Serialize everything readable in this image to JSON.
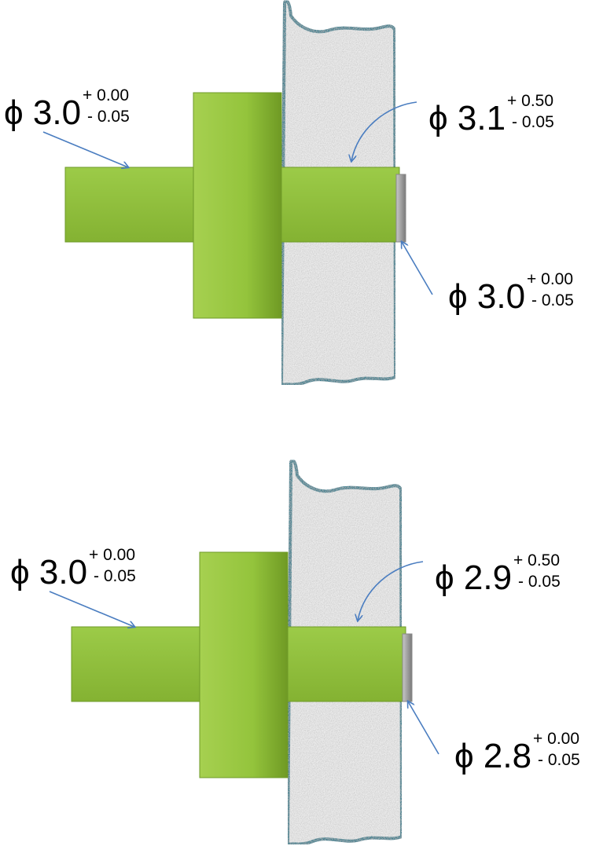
{
  "panels": [
    {
      "labels": [
        {
          "main": "ϕ 3.0",
          "upper": "+ 0.00",
          "lower": "- 0.05"
        },
        {
          "main": "ϕ 3.1",
          "upper": "+ 0.50",
          "lower": "- 0.05"
        },
        {
          "main": "ϕ 3.0",
          "upper": "+ 0.00",
          "lower": "- 0.05"
        }
      ]
    },
    {
      "labels": [
        {
          "main": "ϕ 3.0",
          "upper": "+ 0.00",
          "lower": "- 0.05"
        },
        {
          "main": "ϕ 2.9",
          "upper": "+ 0.50",
          "lower": "- 0.05"
        },
        {
          "main": "ϕ 2.8",
          "upper": "+ 0.00",
          "lower": "- 0.05"
        }
      ]
    }
  ]
}
